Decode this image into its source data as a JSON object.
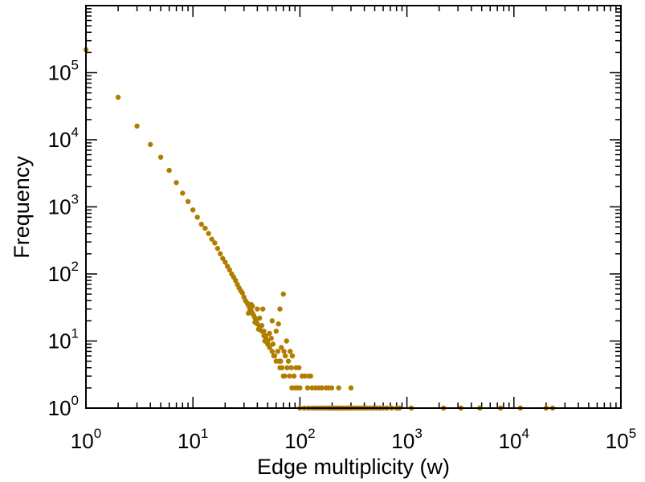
{
  "chart_data": {
    "type": "scatter",
    "title": "",
    "xlabel": "Edge multiplicity (w)",
    "ylabel": "Frequency",
    "x_scale": "log",
    "y_scale": "log",
    "xlim": [
      1,
      100000
    ],
    "ylim": [
      1,
      1000000
    ],
    "grid": false,
    "marker_color": "#b07d00",
    "x_tick_labels": [
      {
        "base": "10",
        "exp": "0",
        "value": 1
      },
      {
        "base": "10",
        "exp": "1",
        "value": 10
      },
      {
        "base": "10",
        "exp": "2",
        "value": 100
      },
      {
        "base": "10",
        "exp": "3",
        "value": 1000
      },
      {
        "base": "10",
        "exp": "4",
        "value": 10000
      },
      {
        "base": "10",
        "exp": "5",
        "value": 100000
      }
    ],
    "y_tick_labels": [
      {
        "base": "10",
        "exp": "0",
        "value": 1
      },
      {
        "base": "10",
        "exp": "1",
        "value": 10
      },
      {
        "base": "10",
        "exp": "2",
        "value": 100
      },
      {
        "base": "10",
        "exp": "3",
        "value": 1000
      },
      {
        "base": "10",
        "exp": "4",
        "value": 10000
      },
      {
        "base": "10",
        "exp": "5",
        "value": 100000
      }
    ],
    "points": [
      [
        1,
        220000
      ],
      [
        2,
        43000
      ],
      [
        3,
        16000
      ],
      [
        4,
        8500
      ],
      [
        5,
        5500
      ],
      [
        6,
        3500
      ],
      [
        7,
        2300
      ],
      [
        8,
        1600
      ],
      [
        9,
        1200
      ],
      [
        10,
        900
      ],
      [
        11,
        700
      ],
      [
        12,
        550
      ],
      [
        13,
        480
      ],
      [
        14,
        400
      ],
      [
        15,
        330
      ],
      [
        16,
        290
      ],
      [
        17,
        240
      ],
      [
        18,
        200
      ],
      [
        19,
        170
      ],
      [
        20,
        150
      ],
      [
        21,
        130
      ],
      [
        22,
        115
      ],
      [
        23,
        100
      ],
      [
        24,
        90
      ],
      [
        25,
        80
      ],
      [
        26,
        70
      ],
      [
        27,
        62
      ],
      [
        28,
        56
      ],
      [
        29,
        52
      ],
      [
        30,
        45
      ],
      [
        31,
        40
      ],
      [
        32,
        37
      ],
      [
        33,
        34
      ],
      [
        34,
        30
      ],
      [
        35,
        28
      ],
      [
        36,
        26
      ],
      [
        37,
        24
      ],
      [
        38,
        22
      ],
      [
        39,
        20
      ],
      [
        40,
        18
      ],
      [
        42,
        16
      ],
      [
        44,
        14
      ],
      [
        46,
        12
      ],
      [
        48,
        11
      ],
      [
        50,
        9
      ],
      [
        52,
        8
      ],
      [
        55,
        7
      ],
      [
        58,
        6
      ],
      [
        60,
        5
      ],
      [
        65,
        4
      ],
      [
        70,
        3
      ],
      [
        80,
        3
      ],
      [
        90,
        2
      ],
      [
        95,
        2
      ],
      [
        38,
        19
      ],
      [
        42,
        22
      ],
      [
        44,
        17
      ],
      [
        46,
        14
      ],
      [
        48,
        12
      ],
      [
        50,
        10
      ],
      [
        54,
        11
      ],
      [
        56,
        9
      ],
      [
        62,
        7
      ],
      [
        66,
        5
      ],
      [
        68,
        4
      ],
      [
        72,
        3
      ],
      [
        76,
        4
      ],
      [
        84,
        2
      ],
      [
        88,
        3
      ],
      [
        100,
        2
      ],
      [
        105,
        3
      ],
      [
        118,
        2
      ],
      [
        122,
        3
      ],
      [
        33,
        26
      ],
      [
        36,
        33
      ],
      [
        41,
        15
      ],
      [
        47,
        10
      ],
      [
        52,
        13
      ],
      [
        57,
        6
      ],
      [
        60,
        14
      ],
      [
        64,
        5
      ],
      [
        67,
        8
      ],
      [
        71,
        7
      ],
      [
        73,
        6
      ],
      [
        78,
        5
      ],
      [
        81,
        7
      ],
      [
        83,
        4
      ],
      [
        85,
        6
      ],
      [
        92,
        4
      ],
      [
        98,
        4
      ],
      [
        105,
        3
      ],
      [
        112,
        3
      ],
      [
        126,
        3
      ],
      [
        130,
        2
      ],
      [
        140,
        2
      ],
      [
        150,
        2
      ],
      [
        160,
        2
      ],
      [
        175,
        2
      ],
      [
        185,
        2
      ],
      [
        198,
        2
      ],
      [
        230,
        2
      ],
      [
        300,
        2
      ],
      [
        35,
        35
      ],
      [
        40,
        30
      ],
      [
        45,
        30
      ],
      [
        55,
        20
      ],
      [
        63,
        18
      ],
      [
        75,
        10
      ],
      [
        65,
        30
      ],
      [
        70,
        50
      ],
      [
        100,
        1
      ],
      [
        110,
        1
      ],
      [
        120,
        1
      ],
      [
        130,
        1
      ],
      [
        140,
        1
      ],
      [
        150,
        1
      ],
      [
        160,
        1
      ],
      [
        170,
        1
      ],
      [
        180,
        1
      ],
      [
        190,
        1
      ],
      [
        200,
        1
      ],
      [
        210,
        1
      ],
      [
        220,
        1
      ],
      [
        230,
        1
      ],
      [
        240,
        1
      ],
      [
        250,
        1
      ],
      [
        265,
        1
      ],
      [
        280,
        1
      ],
      [
        295,
        1
      ],
      [
        310,
        1
      ],
      [
        330,
        1
      ],
      [
        350,
        1
      ],
      [
        370,
        1
      ],
      [
        390,
        1
      ],
      [
        420,
        1
      ],
      [
        450,
        1
      ],
      [
        480,
        1
      ],
      [
        520,
        1
      ],
      [
        560,
        1
      ],
      [
        600,
        1
      ],
      [
        650,
        1
      ],
      [
        720,
        1
      ],
      [
        800,
        1
      ],
      [
        850,
        1
      ],
      [
        1100,
        1
      ],
      [
        2200,
        1
      ],
      [
        3200,
        1
      ],
      [
        4800,
        1
      ],
      [
        7500,
        1
      ],
      [
        11500,
        1
      ],
      [
        20000,
        1
      ],
      [
        23000,
        1
      ]
    ]
  }
}
